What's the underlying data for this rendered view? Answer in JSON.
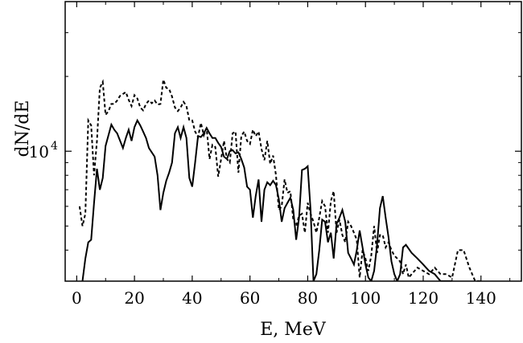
{
  "chart_data": {
    "type": "line",
    "title": "",
    "xlabel": "E, MeV",
    "ylabel": "dN/dE",
    "xlim": [
      -4,
      154
    ],
    "ylim": [
      3000,
      40000
    ],
    "y_scale": "log",
    "grid": false,
    "legend": "none",
    "x_ticks": [
      {
        "value": 0,
        "label": "0"
      },
      {
        "value": 20,
        "label": "20"
      },
      {
        "value": 40,
        "label": "40"
      },
      {
        "value": 60,
        "label": "60"
      },
      {
        "value": 80,
        "label": "80"
      },
      {
        "value": 100,
        "label": "100"
      },
      {
        "value": 120,
        "label": "120"
      },
      {
        "value": 140,
        "label": "140"
      }
    ],
    "y_ticks": [
      {
        "value": 10000,
        "label_base": "10",
        "label_exp": "4"
      }
    ],
    "series": [
      {
        "style": "solid",
        "color": "#000000",
        "x": [
          2,
          3,
          4,
          5,
          6,
          7,
          8,
          9,
          10,
          12,
          13,
          14,
          16,
          17,
          18,
          19,
          20,
          21,
          22,
          23,
          24,
          25,
          27,
          28,
          29,
          30,
          31,
          32,
          33,
          34,
          35,
          36,
          37,
          38,
          39,
          40,
          41,
          42,
          43,
          44,
          45,
          46,
          47,
          48,
          49,
          50,
          51,
          52,
          53,
          54,
          55,
          56,
          57,
          58,
          59,
          60,
          61,
          62,
          63,
          64,
          65,
          66,
          67,
          68,
          69,
          70,
          71,
          72,
          73,
          74,
          75,
          76,
          77,
          78,
          79,
          80,
          81,
          82,
          83,
          84,
          85,
          86,
          87,
          88,
          89,
          90,
          91,
          92,
          93,
          94,
          95,
          96,
          97,
          98,
          99,
          100,
          101,
          102,
          103,
          104,
          105,
          106,
          107,
          108,
          109,
          110,
          111,
          112,
          113,
          114,
          116,
          118,
          120,
          122,
          124,
          126,
          128,
          130
        ],
        "y": [
          3000,
          3700,
          4300,
          4400,
          6200,
          8500,
          7000,
          7800,
          10500,
          12800,
          12200,
          11800,
          10300,
          11300,
          12200,
          11000,
          12500,
          13300,
          12700,
          12000,
          11300,
          10300,
          9500,
          8000,
          5800,
          6800,
          7600,
          8200,
          9000,
          11800,
          12500,
          11300,
          12500,
          11300,
          7800,
          7200,
          9000,
          11500,
          11400,
          11800,
          12400,
          11800,
          11300,
          11300,
          10800,
          10400,
          9500,
          9300,
          10000,
          10100,
          9800,
          9900,
          9300,
          8600,
          7200,
          7000,
          5400,
          6600,
          7700,
          5200,
          7000,
          7500,
          7300,
          7600,
          7300,
          6400,
          5200,
          5900,
          6200,
          6500,
          5800,
          4400,
          5400,
          8400,
          8500,
          8700,
          5800,
          3000,
          3200,
          4000,
          5300,
          5200,
          4300,
          4700,
          3700,
          5100,
          5400,
          5800,
          5200,
          3900,
          3700,
          3500,
          4000,
          4800,
          4100,
          3500,
          3100,
          3000,
          3300,
          4200,
          5900,
          6600,
          5400,
          4500,
          3600,
          3200,
          3000,
          3200,
          4100,
          4200,
          3900,
          3700,
          3500,
          3300,
          3200,
          3000,
          2850,
          2700
        ]
      },
      {
        "style": "dashed",
        "color": "#000000",
        "x": [
          1,
          2,
          3,
          4,
          5,
          6,
          7,
          8,
          9,
          10,
          11,
          12,
          13,
          14,
          15,
          16,
          17,
          18,
          19,
          20,
          21,
          22,
          23,
          24,
          25,
          26,
          27,
          28,
          29,
          30,
          31,
          32,
          33,
          34,
          35,
          36,
          37,
          38,
          39,
          40,
          41,
          42,
          43,
          44,
          45,
          46,
          47,
          48,
          49,
          50,
          51,
          52,
          53,
          54,
          55,
          56,
          57,
          58,
          59,
          60,
          61,
          62,
          63,
          64,
          65,
          66,
          67,
          68,
          69,
          70,
          71,
          72,
          73,
          74,
          75,
          76,
          77,
          78,
          79,
          80,
          81,
          82,
          83,
          84,
          85,
          86,
          87,
          88,
          89,
          90,
          91,
          92,
          93,
          94,
          95,
          96,
          97,
          98,
          99,
          100,
          101,
          102,
          103,
          104,
          105,
          106,
          107,
          108,
          109,
          110,
          111,
          112,
          113,
          114,
          115,
          116,
          118,
          120,
          122,
          124,
          126,
          128,
          130,
          132,
          134,
          136,
          138,
          140
        ],
        "y": [
          6000,
          5000,
          5600,
          13300,
          12700,
          8000,
          11000,
          18000,
          19000,
          14000,
          14500,
          15500,
          15500,
          16000,
          16700,
          17000,
          17300,
          16100,
          15200,
          16800,
          16300,
          15000,
          14600,
          15500,
          16000,
          15600,
          16000,
          15400,
          15500,
          19400,
          18000,
          17800,
          16600,
          15000,
          14500,
          15000,
          15800,
          15200,
          13300,
          13300,
          12000,
          11400,
          13000,
          11600,
          12400,
          9300,
          10600,
          10400,
          7900,
          9300,
          11000,
          9300,
          9000,
          11800,
          12000,
          8200,
          11500,
          12000,
          11000,
          10700,
          12200,
          11500,
          12000,
          10200,
          9200,
          11000,
          8900,
          9600,
          8000,
          5800,
          6000,
          7700,
          6800,
          6900,
          5300,
          5000,
          5500,
          5600,
          4700,
          6200,
          5600,
          5200,
          4700,
          5400,
          6300,
          6000,
          4700,
          6300,
          6900,
          4700,
          5300,
          4600,
          4300,
          5200,
          5000,
          4700,
          4400,
          3100,
          4000,
          3700,
          3300,
          3800,
          5000,
          3900,
          4600,
          4600,
          4100,
          4300,
          4000,
          3800,
          3700,
          3600,
          3200,
          3500,
          3100,
          3200,
          3400,
          3300,
          3200,
          3400,
          3200,
          3200,
          3100,
          4000,
          4000,
          3400,
          3000,
          2700
        ]
      }
    ]
  }
}
